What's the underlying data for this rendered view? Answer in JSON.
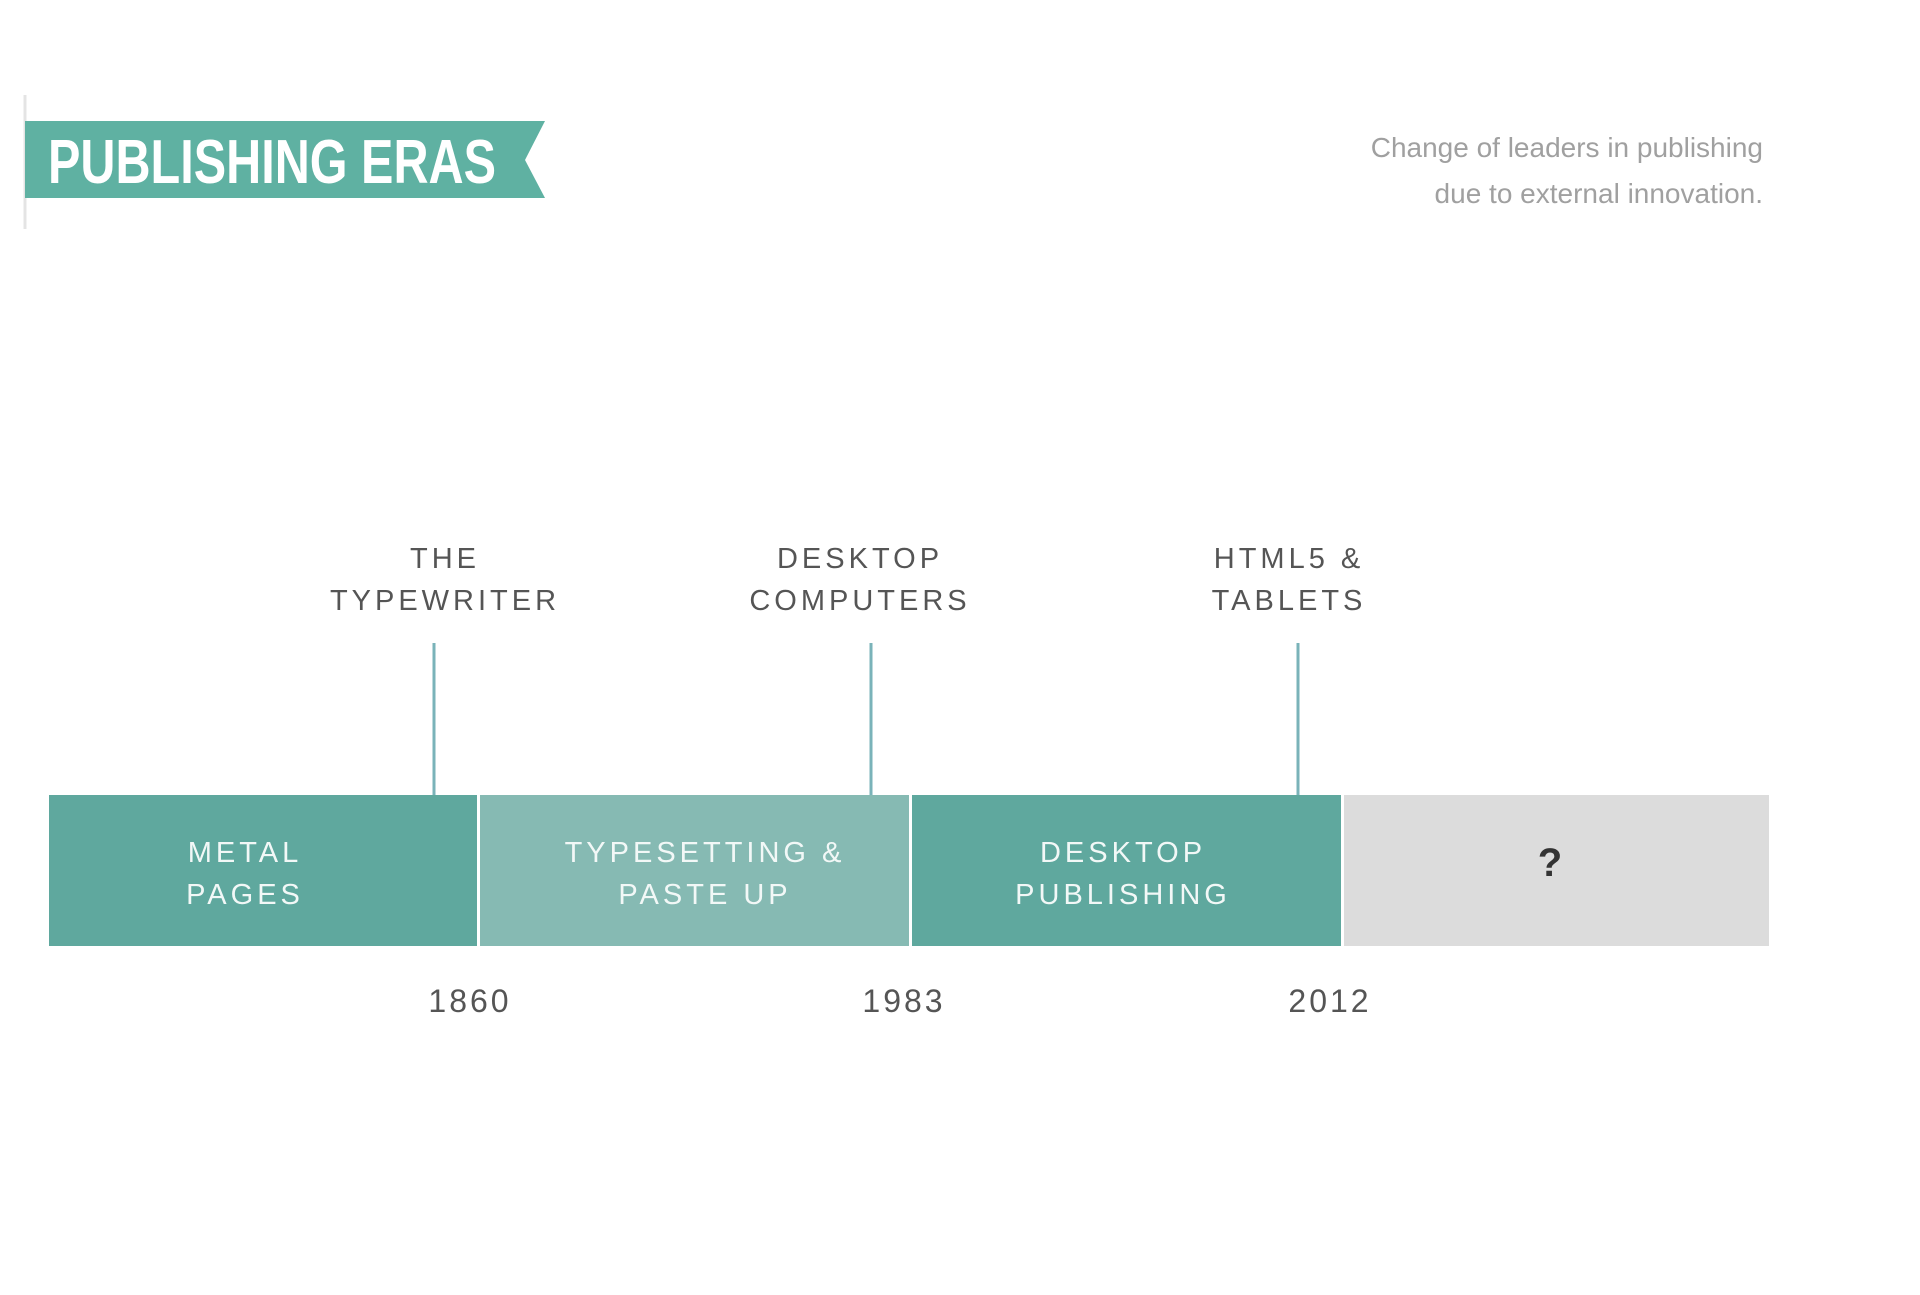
{
  "header": {
    "title": "PUBLISHING ERAS",
    "subtitle": [
      "Change of leaders in publishing",
      "due to external innovation."
    ]
  },
  "innovations": [
    [
      "THE",
      "TYPEWRITER"
    ],
    [
      "DESKTOP",
      "COMPUTERS"
    ],
    [
      "HTML5 &",
      "TABLETS"
    ]
  ],
  "eras": [
    [
      "METAL",
      "PAGES"
    ],
    [
      "TYPESETTING &",
      "PASTE UP"
    ],
    [
      "DESKTOP",
      "PUBLISHING"
    ],
    [
      "?"
    ]
  ],
  "years": [
    "1860",
    "1983",
    "2012"
  ]
}
